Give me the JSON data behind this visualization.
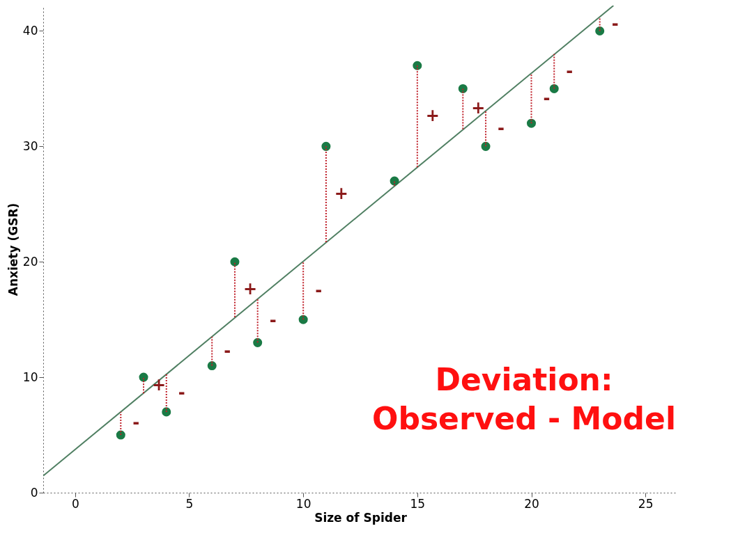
{
  "chart_data": {
    "type": "scatter",
    "xlabel": "Size of Spider",
    "ylabel": "Anxiety (GSR)",
    "xlim": [
      -1.4,
      26.4
    ],
    "ylim": [
      0,
      42.2
    ],
    "xticks": [
      0,
      5,
      10,
      15,
      20,
      25
    ],
    "yticks": [
      0,
      10,
      20,
      30,
      40
    ],
    "grid": false,
    "series": [
      {
        "marker": "circle",
        "color": "#1a7a45",
        "x": [
          2,
          3,
          4,
          6,
          7,
          8,
          10,
          11,
          14,
          15,
          17,
          18,
          20,
          21,
          23
        ],
        "values": [
          5,
          10,
          7,
          11,
          20,
          13,
          15,
          30,
          27,
          37,
          35,
          30,
          32,
          35,
          40
        ],
        "errors": [
          [
            5,
            7.0
          ],
          [
            8.6,
            10
          ],
          [
            7,
            10.3
          ],
          [
            11,
            13.5
          ],
          [
            15.2,
            20
          ],
          [
            13,
            16.8
          ],
          [
            15,
            20
          ],
          [
            21.7,
            30
          ],
          [
            26.6,
            27
          ],
          [
            28.2,
            37
          ],
          [
            31.5,
            35
          ],
          [
            30,
            33.1
          ],
          [
            32,
            36.3
          ],
          [
            35,
            38
          ],
          [
            40,
            41.2
          ]
        ]
      },
      {
        "type": "line",
        "marker": "none",
        "color": "#4f7f62",
        "x": [
          -1.4,
          23.6
        ],
        "values": [
          1.46,
          42.2
        ]
      }
    ],
    "annotations": [
      {
        "text": "-",
        "x": 2,
        "y": 6.0
      },
      {
        "text": "+",
        "x": 3,
        "y": 9.3
      },
      {
        "text": "-",
        "x": 4,
        "y": 8.65
      },
      {
        "text": "-",
        "x": 6,
        "y": 12.25
      },
      {
        "text": "+",
        "x": 7,
        "y": 17.6
      },
      {
        "text": "-",
        "x": 8,
        "y": 14.9
      },
      {
        "text": "-",
        "x": 10,
        "y": 17.5
      },
      {
        "text": "+",
        "x": 11,
        "y": 25.85
      },
      {
        "text": "+",
        "x": 15,
        "y": 32.6
      },
      {
        "text": "+",
        "x": 17,
        "y": 33.25
      },
      {
        "text": "-",
        "x": 18,
        "y": 31.55
      },
      {
        "text": "-",
        "x": 20,
        "y": 34.15
      },
      {
        "text": "-",
        "x": 21,
        "y": 36.5
      },
      {
        "text": "-",
        "x": 23,
        "y": 40.6
      },
      "Deviation:\nObserved - Model"
    ]
  }
}
